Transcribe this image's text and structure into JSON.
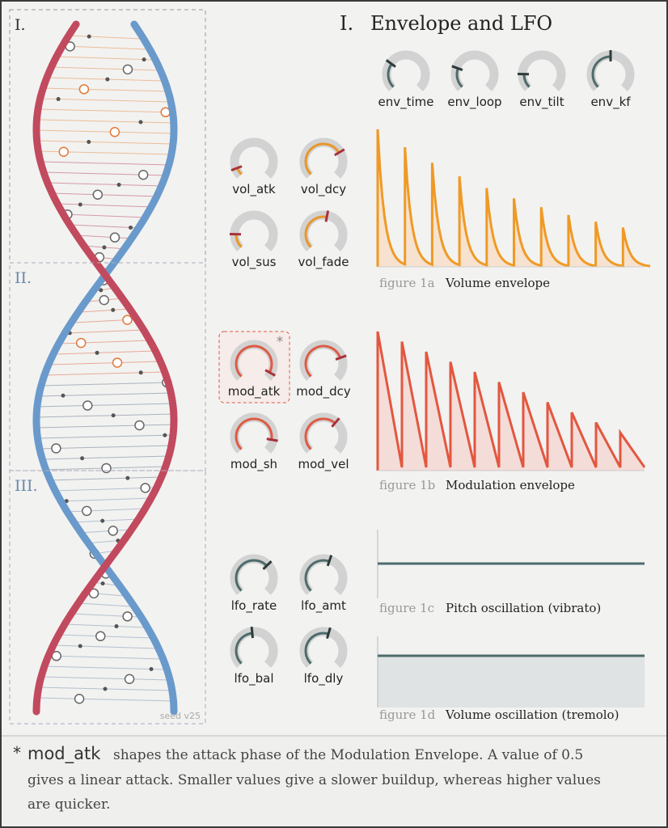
{
  "section_number": "I.",
  "section_title": "Envelope and LFO",
  "panels": [
    {
      "label": "I."
    },
    {
      "label": "II."
    },
    {
      "label": "III."
    }
  ],
  "seed": "seed v25",
  "knob_groups": [
    {
      "color": "#4e6b6b",
      "knobs": [
        {
          "label": "env_time",
          "value": 0.3
        },
        {
          "label": "env_loop",
          "value": 0.24
        },
        {
          "label": "env_tilt",
          "value": 0.17
        },
        {
          "label": "env_kf",
          "value": 0.5
        }
      ]
    },
    {
      "color": "#e8962a",
      "knobs": [
        {
          "label": "vol_atk",
          "value": 0.09
        },
        {
          "label": "vol_dcy",
          "value": 0.72
        },
        {
          "label": "vol_sus",
          "value": 0.17
        },
        {
          "label": "vol_fade",
          "value": 0.54
        }
      ]
    },
    {
      "color": "#dd5a44",
      "knobs": [
        {
          "label": "mod_atk",
          "value": 0.94
        },
        {
          "label": "mod_dcy",
          "value": 0.76
        },
        {
          "label": "mod_sh",
          "value": 0.87
        },
        {
          "label": "mod_vel",
          "value": 0.65
        }
      ]
    },
    {
      "color": "#4e6b6b",
      "knobs": [
        {
          "label": "lfo_rate",
          "value": 0.67
        },
        {
          "label": "lfo_amt",
          "value": 0.57
        },
        {
          "label": "lfo_bal",
          "value": 0.48
        },
        {
          "label": "lfo_dly",
          "value": 0.56
        }
      ]
    }
  ],
  "highlight_marker": "*",
  "figures": [
    {
      "number": "figure 1a",
      "caption": "Volume envelope"
    },
    {
      "number": "figure 1b",
      "caption": "Modulation envelope"
    },
    {
      "number": "figure 1c",
      "caption": "Pitch oscillation (vibrato)"
    },
    {
      "number": "figure 1d",
      "caption": "Volume oscillation (tremolo)"
    }
  ],
  "footnote": {
    "marker": "*",
    "term": "mod_atk",
    "lines": [
      "shapes the attack phase of the Modulation Envelope. A value of 0.5",
      "gives a linear attack. Smaller values give a slower buildup, whereas higher values",
      "are quicker."
    ]
  }
}
